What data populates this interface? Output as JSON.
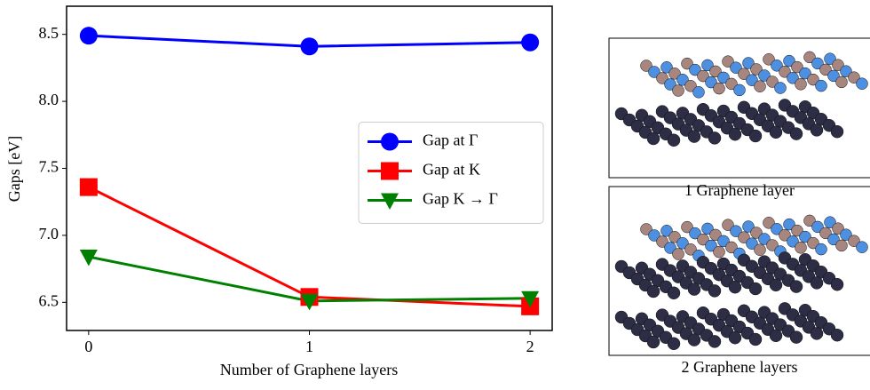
{
  "chart_data": {
    "type": "line",
    "x_label": "Number of Graphene layers",
    "y_label": "Gaps [eV]",
    "x": [
      0,
      1,
      2
    ],
    "xlim": [
      -0.1,
      2.1
    ],
    "xticks": [
      0,
      1,
      2
    ],
    "ylim": [
      6.29,
      8.71
    ],
    "yticks": [
      6.5,
      {
        "value": 7,
        "label": "7.0"
      },
      7.5,
      {
        "value": 8,
        "label": "8.0"
      },
      8.5
    ],
    "legend": "center right",
    "series": [
      {
        "name": "Gap at Γ",
        "color": "#0000ff",
        "marker": "circle",
        "values": [
          8.49,
          8.41,
          8.44
        ]
      },
      {
        "name": "Gap at K",
        "color": "#ff0000",
        "marker": "square",
        "values": [
          7.36,
          6.54,
          6.47
        ]
      },
      {
        "name": "Gap K → Γ",
        "color": "#008000",
        "marker": "triangle-down",
        "values": [
          6.84,
          6.51,
          6.53
        ]
      }
    ]
  },
  "panels": [
    {
      "caption": "1 Graphene layer"
    },
    {
      "caption": "2 Graphene layers"
    }
  ]
}
